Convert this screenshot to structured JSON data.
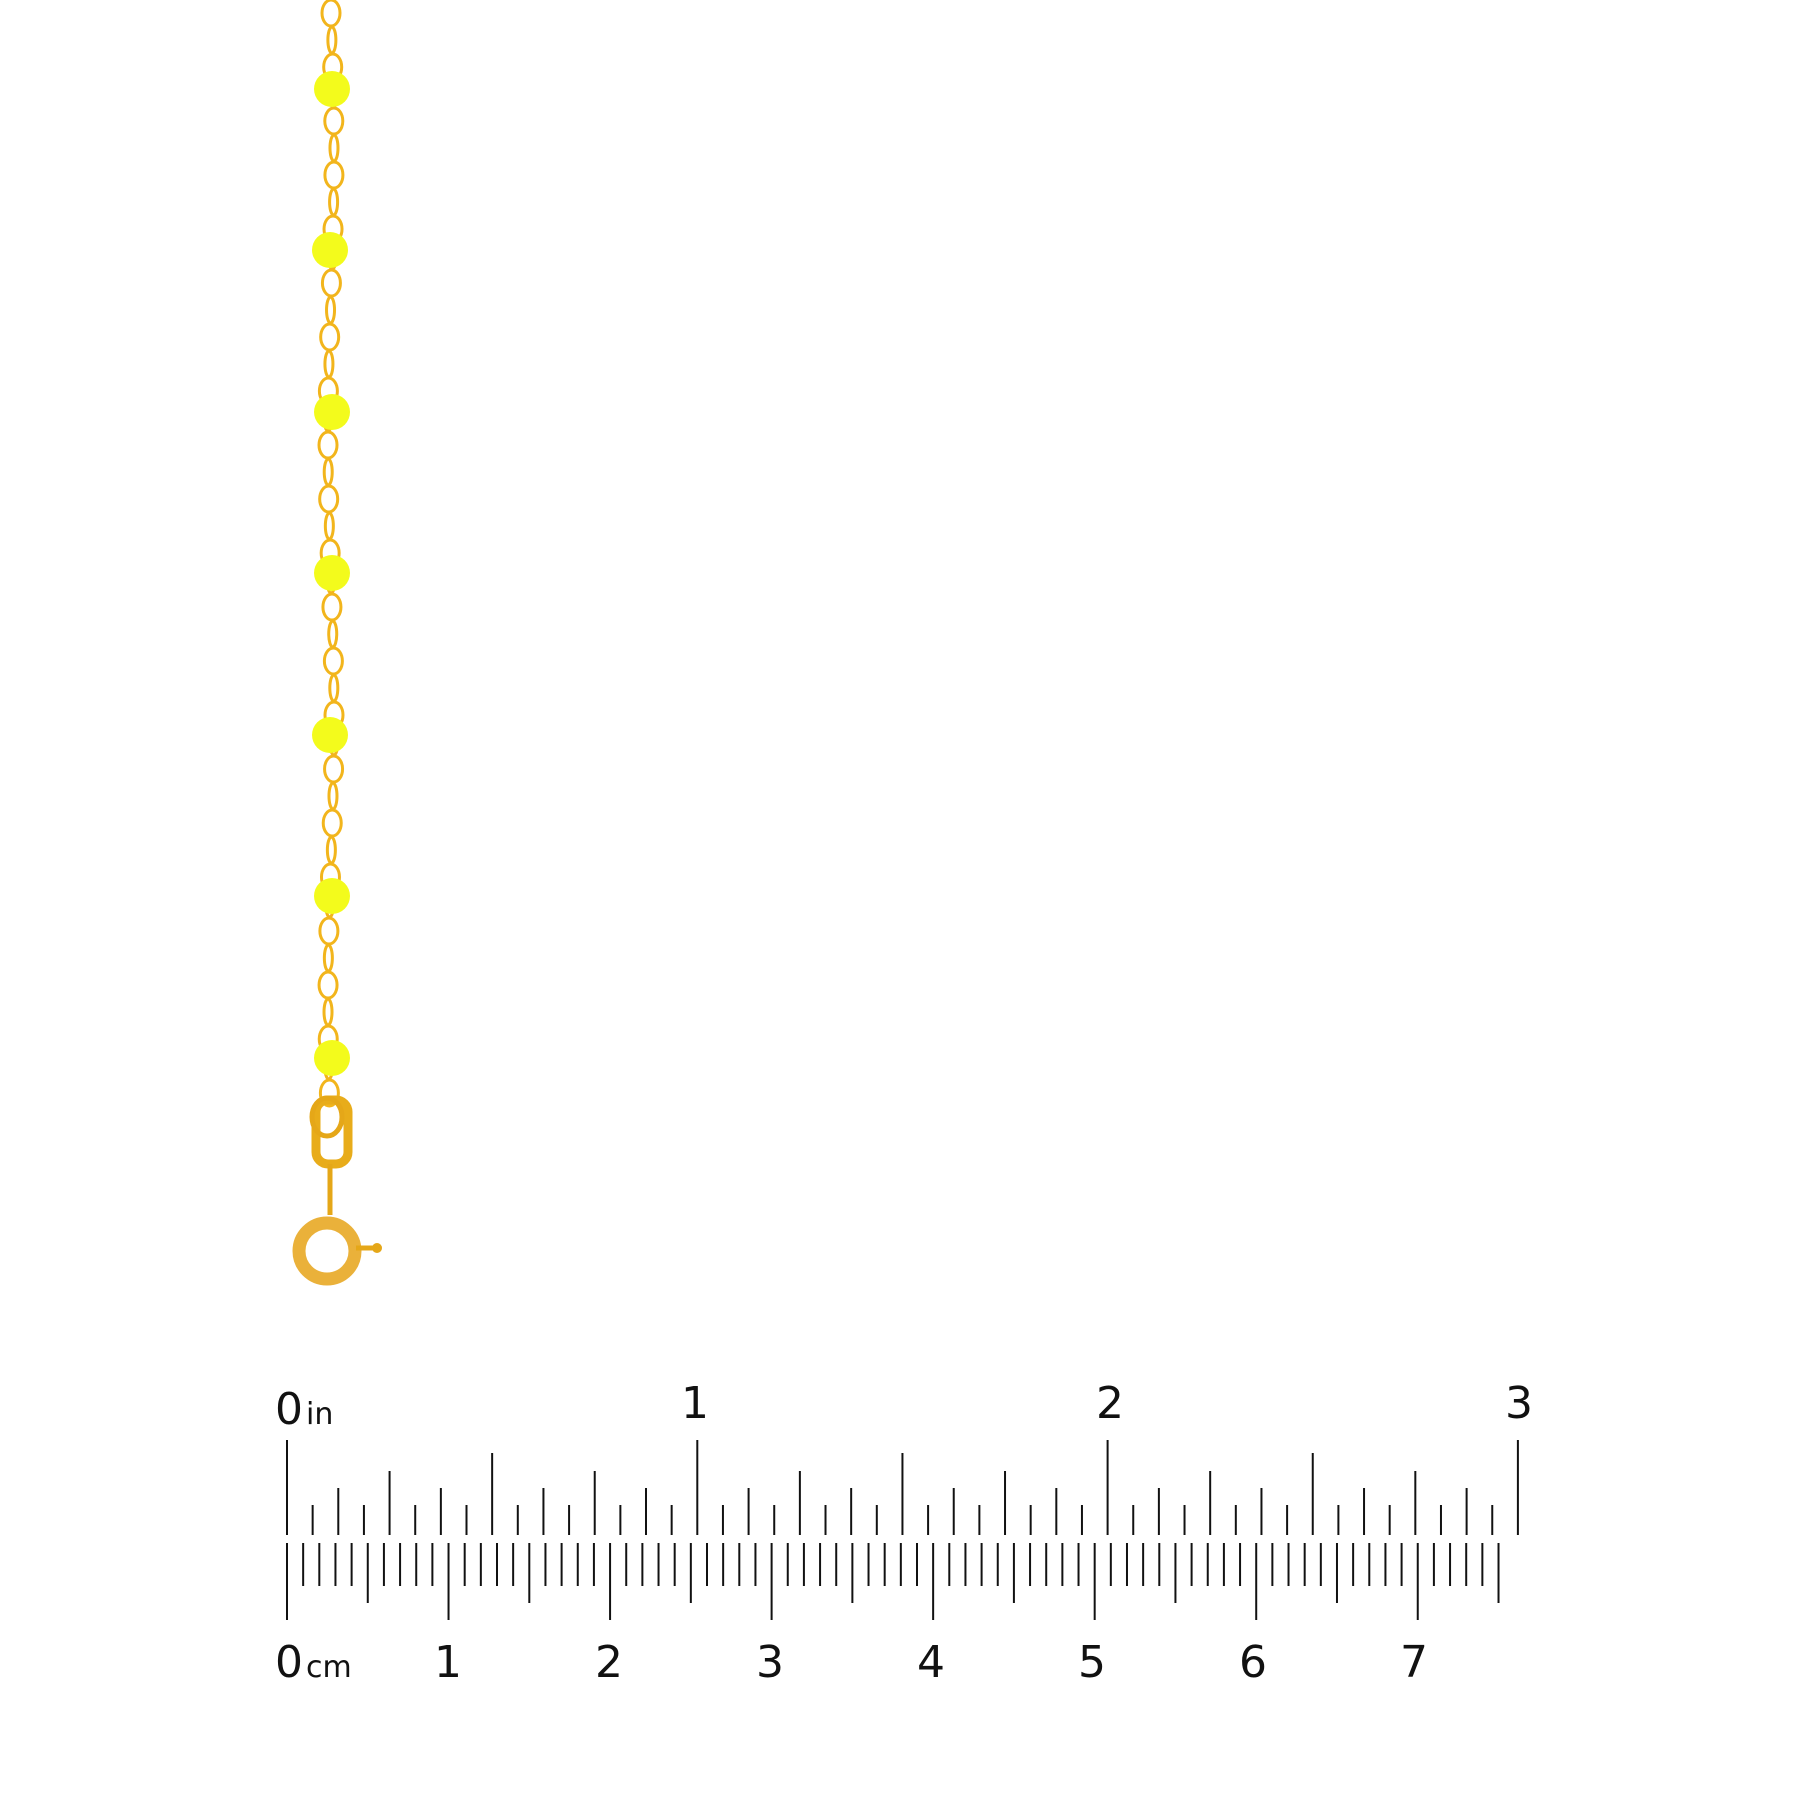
{
  "product": {
    "chain_color": "#f2b51c",
    "bead_color": "#f3fb1c",
    "bead_count": 7
  },
  "ruler": {
    "inch_unit": "in",
    "cm_unit": "cm",
    "inch_labels": [
      "0",
      "1",
      "2",
      "3"
    ],
    "cm_labels": [
      "0",
      "1",
      "2",
      "3",
      "4",
      "5",
      "6",
      "7"
    ],
    "tick_color": "#111111"
  }
}
